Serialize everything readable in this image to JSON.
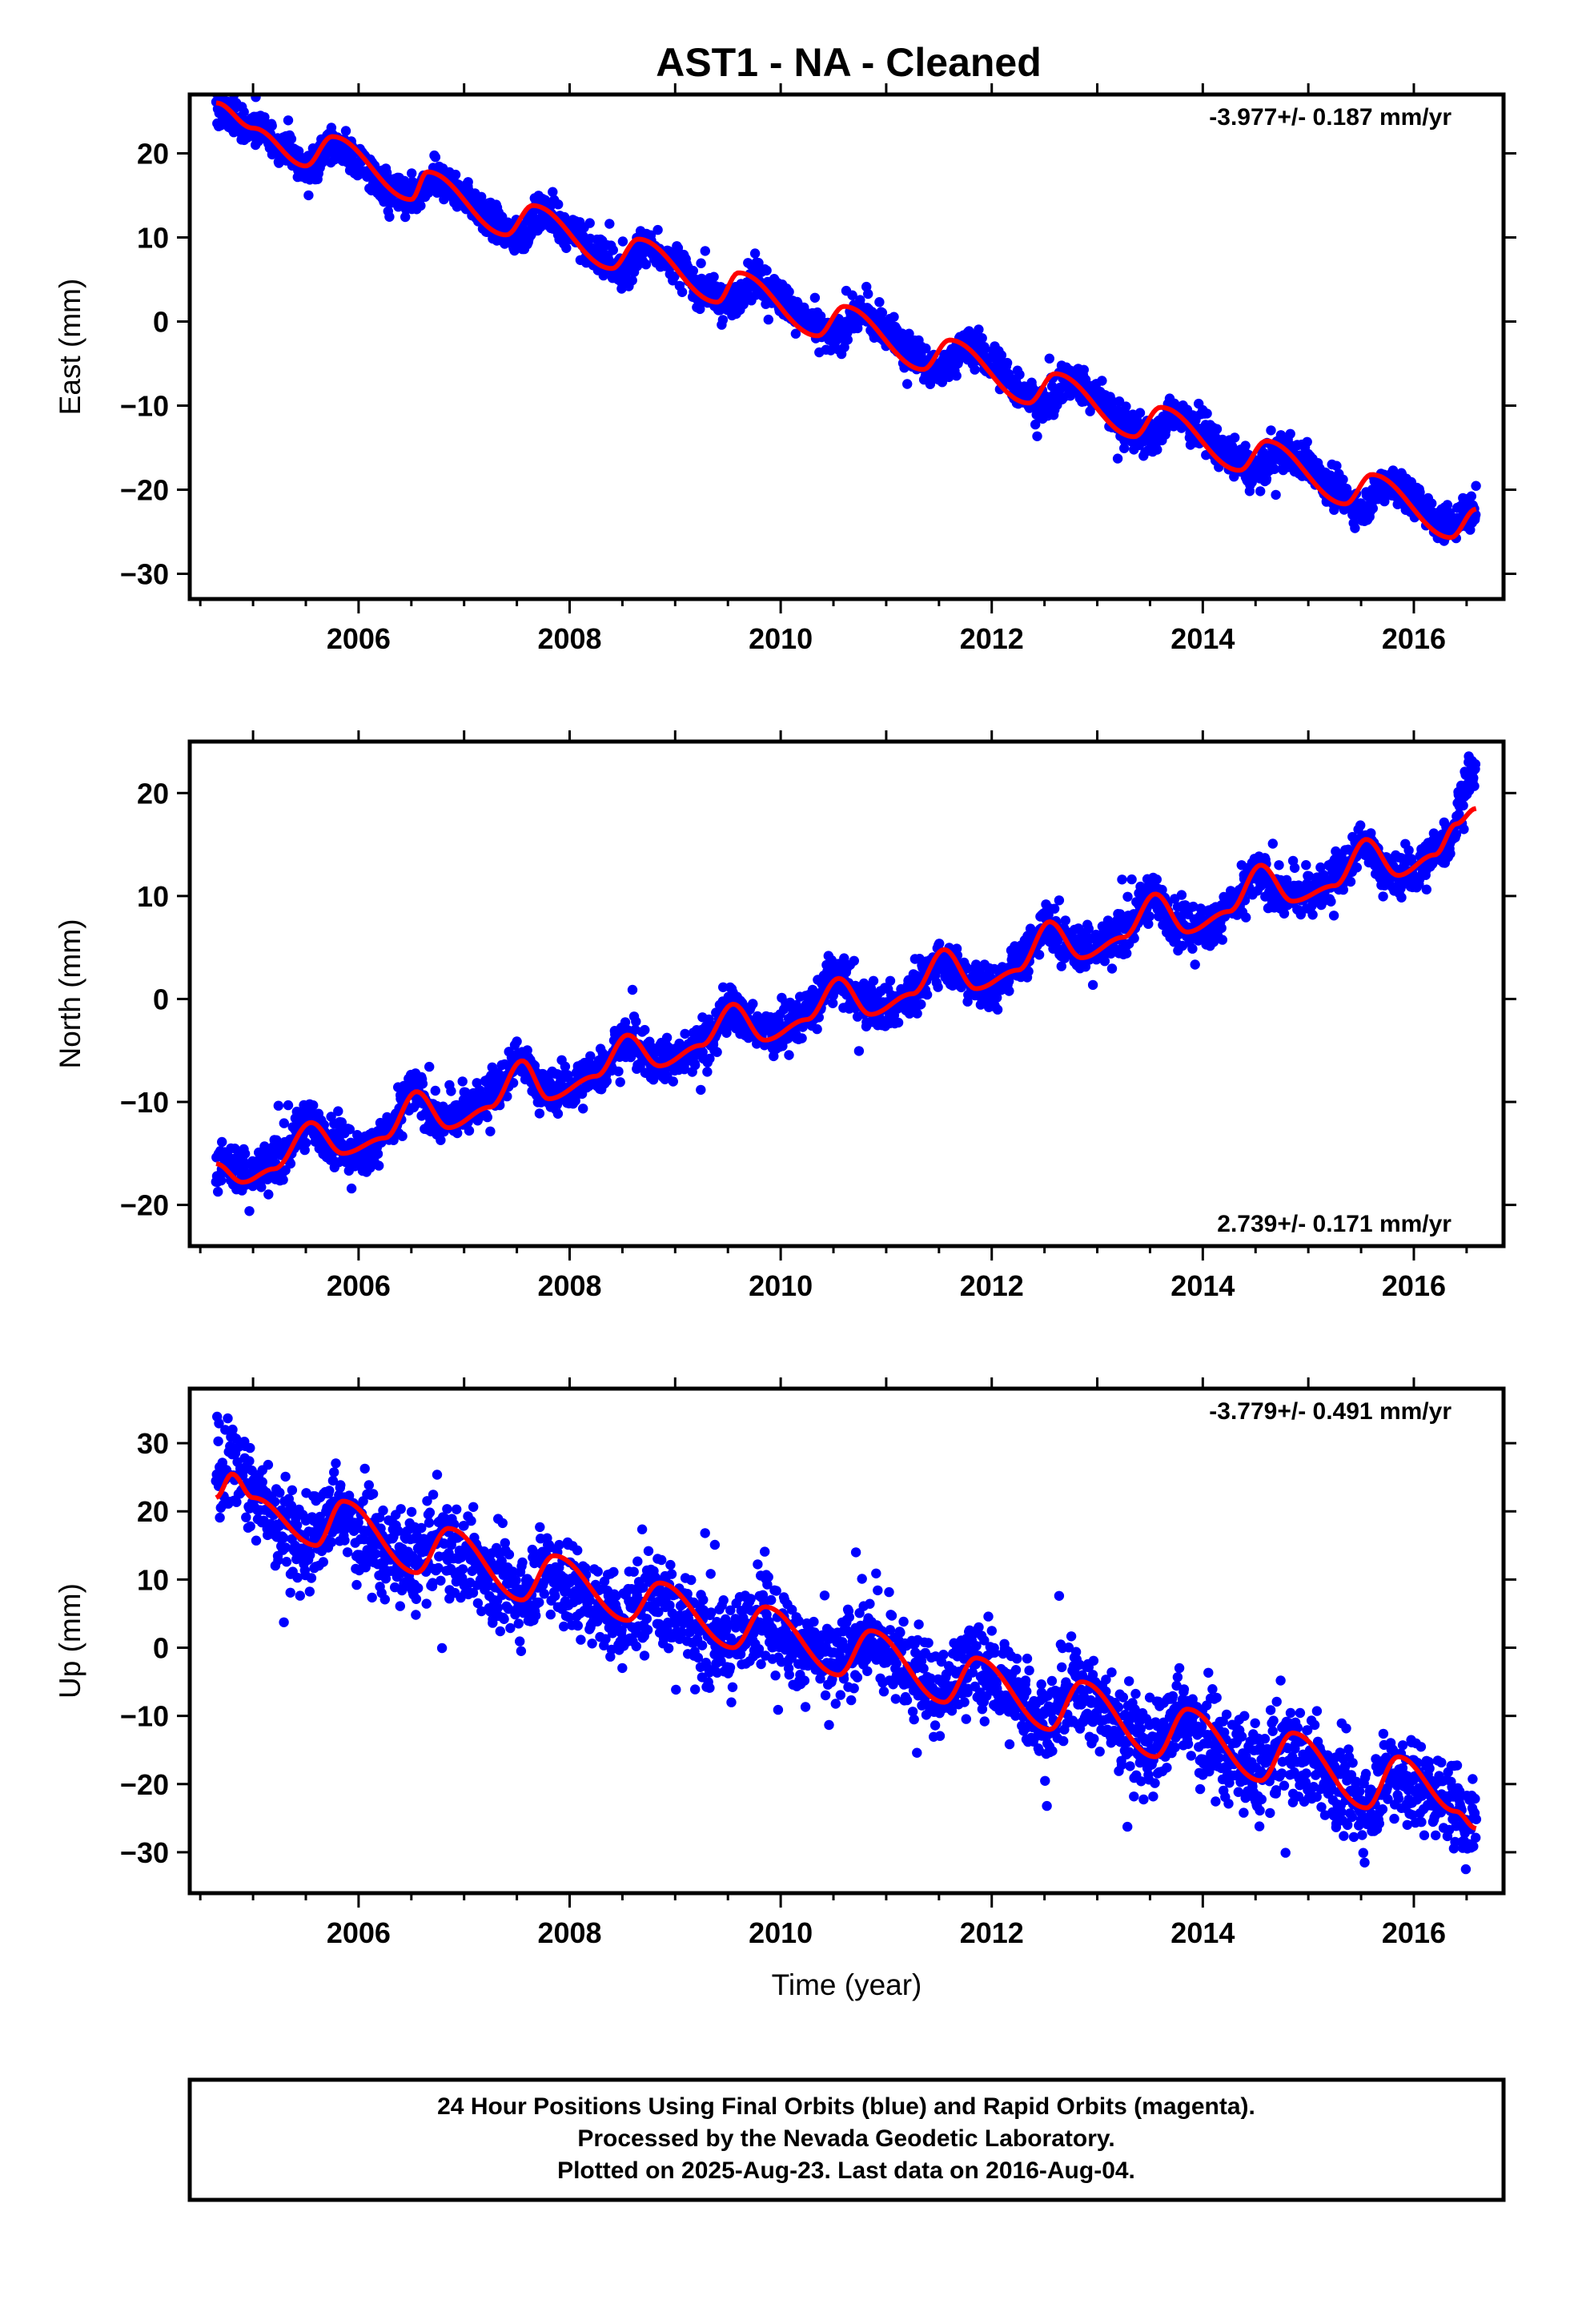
{
  "title": "AST1  - NA - Cleaned",
  "colors": {
    "points": "#0000ff",
    "fit": "#ff0000",
    "frame": "#000000"
  },
  "footer": {
    "lines": [
      "24 Hour Positions Using Final Orbits (blue) and Rapid Orbits (magenta).",
      "Processed by the Nevada Geodetic Laboratory.",
      "Plotted on 2025-Aug-23. Last data on 2016-Aug-04."
    ]
  },
  "chart_data": [
    {
      "type": "scatter",
      "component": "East",
      "ylabel": "East (mm)",
      "xlabel": "",
      "xlim": [
        2004.4,
        2016.85
      ],
      "ylim": [
        -33,
        27
      ],
      "xticks": [
        2006,
        2008,
        2010,
        2012,
        2014,
        2016
      ],
      "yticks": [
        -30,
        -20,
        -10,
        0,
        10,
        20
      ],
      "rate_label": "-3.977+/- 0.187 mm/yr",
      "rate_position": "top-right",
      "data_start": 2004.65,
      "data_end": 2016.59,
      "series": [
        {
          "kind": "points",
          "x": [
            2004.7,
            2005.0,
            2005.3,
            2005.5,
            2005.75,
            2006.0,
            2006.25,
            2006.5,
            2006.75,
            2007.0,
            2007.25,
            2007.5,
            2007.75,
            2008.0,
            2008.25,
            2008.5,
            2008.75,
            2009.0,
            2009.25,
            2009.5,
            2009.75,
            2010.0,
            2010.25,
            2010.5,
            2010.75,
            2011.0,
            2011.25,
            2011.5,
            2011.75,
            2012.0,
            2012.25,
            2012.5,
            2012.75,
            2013.0,
            2013.25,
            2013.5,
            2013.75,
            2014.0,
            2014.25,
            2014.5,
            2014.75,
            2015.0,
            2015.25,
            2015.5,
            2015.75,
            2016.0,
            2016.25,
            2016.55
          ],
          "y": [
            25,
            23,
            21,
            18,
            21,
            19,
            16,
            14,
            17,
            15,
            12,
            10,
            13,
            11,
            8,
            6,
            9,
            7,
            4,
            2,
            5,
            3,
            0,
            -2,
            1,
            -1,
            -4,
            -6,
            -3,
            -5,
            -8,
            -10,
            -7,
            -9,
            -12,
            -14,
            -11,
            -13,
            -16,
            -18,
            -15,
            -17,
            -20,
            -22,
            -19,
            -21,
            -24,
            -23
          ]
        },
        {
          "kind": "fit",
          "x": [
            2004.65,
            2005.0,
            2005.5,
            2005.75,
            2006.5,
            2006.65,
            2007.4,
            2007.65,
            2008.4,
            2008.65,
            2009.4,
            2009.6,
            2010.35,
            2010.6,
            2011.35,
            2011.6,
            2012.35,
            2012.6,
            2013.35,
            2013.6,
            2014.35,
            2014.6,
            2015.35,
            2015.6,
            2016.35,
            2016.59
          ],
          "y": [
            26,
            23,
            18.5,
            22,
            14.5,
            17.8,
            10.3,
            13.8,
            6.3,
            9.8,
            2.3,
            5.8,
            -1.7,
            1.8,
            -5.7,
            -2.2,
            -9.7,
            -6.2,
            -13.7,
            -10.2,
            -17.7,
            -14.2,
            -21.7,
            -18.2,
            -25.7,
            -22.3
          ]
        }
      ]
    },
    {
      "type": "scatter",
      "component": "North",
      "ylabel": "North (mm)",
      "xlabel": "",
      "xlim": [
        2004.4,
        2016.85
      ],
      "ylim": [
        -24,
        25
      ],
      "xticks": [
        2006,
        2008,
        2010,
        2012,
        2014,
        2016
      ],
      "yticks": [
        -20,
        -10,
        0,
        10,
        20
      ],
      "rate_label": "2.739+/- 0.171 mm/yr",
      "rate_position": "bottom-right",
      "data_start": 2004.65,
      "data_end": 2016.59,
      "series": [
        {
          "kind": "points",
          "x": [
            2004.7,
            2005.0,
            2005.3,
            2005.5,
            2005.8,
            2006.0,
            2006.3,
            2006.5,
            2006.8,
            2007.0,
            2007.3,
            2007.5,
            2007.8,
            2008.0,
            2008.3,
            2008.5,
            2008.8,
            2009.0,
            2009.3,
            2009.5,
            2009.8,
            2010.0,
            2010.3,
            2010.5,
            2010.8,
            2011.0,
            2011.3,
            2011.5,
            2011.8,
            2012.0,
            2012.3,
            2012.5,
            2012.8,
            2013.0,
            2013.3,
            2013.5,
            2013.8,
            2014.0,
            2014.3,
            2014.5,
            2014.8,
            2015.0,
            2015.3,
            2015.5,
            2015.8,
            2016.0,
            2016.3,
            2016.55
          ],
          "y": [
            -16,
            -17,
            -15,
            -12,
            -14,
            -15,
            -13,
            -9,
            -12,
            -11,
            -9,
            -6,
            -9,
            -9,
            -7,
            -4,
            -6,
            -6,
            -4,
            -1,
            -3,
            -3,
            -1,
            2,
            0,
            -1,
            1,
            4,
            2,
            1,
            4,
            7,
            5,
            5,
            7,
            10,
            7,
            7,
            9,
            12,
            10,
            10,
            12,
            15,
            12,
            12,
            15,
            22
          ]
        },
        {
          "kind": "fit",
          "x": [
            2004.65,
            2004.9,
            2005.2,
            2005.55,
            2005.85,
            2006.25,
            2006.55,
            2006.85,
            2007.25,
            2007.55,
            2007.8,
            2008.25,
            2008.55,
            2008.85,
            2009.25,
            2009.55,
            2009.85,
            2010.25,
            2010.55,
            2010.85,
            2011.25,
            2011.55,
            2011.85,
            2012.25,
            2012.55,
            2012.85,
            2013.25,
            2013.55,
            2013.85,
            2014.25,
            2014.55,
            2014.85,
            2015.25,
            2015.55,
            2015.85,
            2016.2,
            2016.4,
            2016.59
          ],
          "y": [
            -16,
            -17.8,
            -16.5,
            -12,
            -15,
            -13.5,
            -9,
            -12.5,
            -10.5,
            -6,
            -9.7,
            -7.5,
            -3.5,
            -6.5,
            -4.5,
            -0.5,
            -4,
            -2,
            2,
            -1.5,
            0.5,
            4.8,
            1,
            2.8,
            7.5,
            4,
            6,
            10.2,
            6.5,
            8.5,
            13,
            9.5,
            11,
            15.5,
            12,
            14,
            17,
            18.5
          ]
        }
      ]
    },
    {
      "type": "scatter",
      "component": "Up",
      "ylabel": "Up (mm)",
      "xlabel": "Time (year)",
      "xlim": [
        2004.4,
        2016.85
      ],
      "ylim": [
        -36,
        38
      ],
      "xticks": [
        2006,
        2008,
        2010,
        2012,
        2014,
        2016
      ],
      "yticks": [
        -30,
        -20,
        -10,
        0,
        10,
        20,
        30
      ],
      "rate_label": "-3.779+/- 0.491 mm/yr",
      "rate_position": "top-right",
      "data_start": 2004.65,
      "data_end": 2016.59,
      "series": [
        {
          "kind": "points",
          "x": [
            2004.7,
            2004.85,
            2005.0,
            2005.3,
            2005.5,
            2005.8,
            2006.0,
            2006.3,
            2006.5,
            2006.8,
            2007.0,
            2007.3,
            2007.5,
            2007.8,
            2008.0,
            2008.3,
            2008.5,
            2008.8,
            2009.0,
            2009.3,
            2009.5,
            2009.8,
            2010.0,
            2010.3,
            2010.5,
            2010.8,
            2011.0,
            2011.3,
            2011.5,
            2011.8,
            2012.0,
            2012.3,
            2012.5,
            2012.8,
            2013.0,
            2013.3,
            2013.5,
            2013.8,
            2014.0,
            2014.3,
            2014.5,
            2014.8,
            2015.0,
            2015.3,
            2015.5,
            2015.8,
            2016.0,
            2016.3,
            2016.55
          ],
          "y": [
            25,
            27,
            22,
            18,
            15,
            20,
            17,
            14,
            12,
            16,
            13,
            10,
            8,
            12,
            9,
            6,
            4,
            8,
            5,
            2,
            0,
            5,
            2,
            -1,
            -3,
            2,
            -1,
            -4,
            -7,
            -2,
            -5,
            -8,
            -11,
            -6,
            -9,
            -12,
            -15,
            -10,
            -13,
            -16,
            -19,
            -14,
            -17,
            -20,
            -23,
            -18,
            -20,
            -22,
            -26
          ]
        },
        {
          "kind": "fit",
          "x": [
            2004.65,
            2004.8,
            2005.0,
            2005.6,
            2005.85,
            2006.55,
            2006.85,
            2007.55,
            2007.85,
            2008.55,
            2008.85,
            2009.55,
            2009.85,
            2010.55,
            2010.85,
            2011.55,
            2011.85,
            2012.55,
            2012.85,
            2013.55,
            2013.85,
            2014.55,
            2014.85,
            2015.55,
            2015.85,
            2016.4,
            2016.59
          ],
          "y": [
            22,
            25.5,
            22,
            15,
            21.5,
            11,
            17.5,
            7,
            13.5,
            4,
            9.5,
            0,
            6,
            -4,
            2.5,
            -8,
            -1.5,
            -12,
            -5,
            -16,
            -9,
            -19.5,
            -12.5,
            -23.5,
            -16,
            -24,
            -26.5
          ]
        }
      ]
    }
  ]
}
